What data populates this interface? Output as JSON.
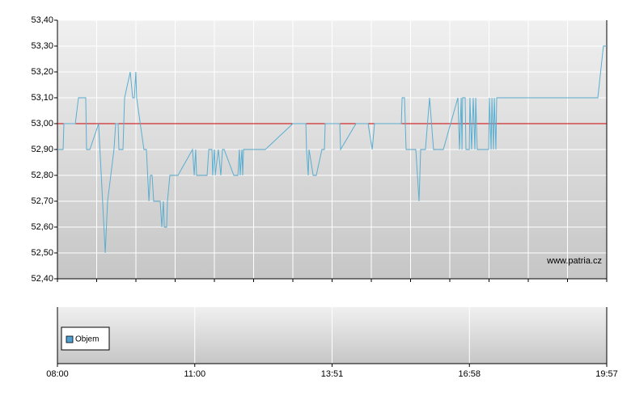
{
  "chart_data": [
    {
      "type": "line",
      "x": [
        0,
        0.041,
        0.047,
        0.13,
        0.153,
        0.206,
        0.212,
        0.236,
        0.3,
        0.348,
        0.365,
        0.412,
        0.424,
        0.442,
        0.448,
        0.477,
        0.489,
        0.53,
        0.548,
        0.56,
        0.571,
        0.577,
        0.63,
        0.648,
        0.666,
        0.677,
        0.689,
        0.701,
        0.748,
        0.76,
        0.772,
        0.778,
        0.795,
        0.801,
        0.819,
        0.878,
        0.984,
        0.996,
        1.007,
        1.013,
        1.09,
        1.102,
        1.125,
        1.131,
        1.143,
        1.149,
        1.172,
        1.19,
        1.202,
        1.214,
        1.284,
        1.314,
        1.325,
        1.331,
        1.343,
        1.349,
        1.355,
        1.514,
        1.714,
        1.809,
        1.814,
        1.826,
        1.832,
        1.862,
        1.885,
        1.926,
        1.944,
        1.95,
        2.056,
        2.062,
        2.174,
        2.262,
        2.292,
        2.309,
        2.504,
        2.51,
        2.527,
        2.539,
        2.61,
        2.633,
        2.645,
        2.68,
        2.71,
        2.739,
        2.81,
        2.916,
        2.928,
        2.94,
        2.946,
        2.951,
        2.969,
        2.975,
        2.999,
        3.004,
        3.016,
        3.028,
        3.04,
        3.046,
        3.057,
        3.14,
        3.146,
        3.158,
        3.164,
        3.175,
        3.181,
        3.193,
        3.199,
        3.935,
        3.976,
        4
      ],
      "series": [
        {
          "color": "#5aaed0",
          "values": [
            52.9,
            52.9,
            53.0,
            53.0,
            53.1,
            53.1,
            52.9,
            52.9,
            53.0,
            52.5,
            52.7,
            52.9,
            53.0,
            53.0,
            52.9,
            52.9,
            53.1,
            53.2,
            53.1,
            53.1,
            53.2,
            53.1,
            52.9,
            52.9,
            52.7,
            52.8,
            52.8,
            52.7,
            52.7,
            52.6,
            52.7,
            52.6,
            52.6,
            52.7,
            52.8,
            52.8,
            52.9,
            52.8,
            52.9,
            52.8,
            52.8,
            52.9,
            52.9,
            52.8,
            52.9,
            52.8,
            52.9,
            52.8,
            52.9,
            52.9,
            52.8,
            52.8,
            52.9,
            52.8,
            52.9,
            52.8,
            52.9,
            52.9,
            53.0,
            53.0,
            52.9,
            52.8,
            52.9,
            52.8,
            52.8,
            52.9,
            52.9,
            53.0,
            53.0,
            52.9,
            53.0,
            53.0,
            52.9,
            53.0,
            53.0,
            53.1,
            53.1,
            52.9,
            52.9,
            52.7,
            52.9,
            52.9,
            53.1,
            52.9,
            52.9,
            53.1,
            52.9,
            53.1,
            52.9,
            53.1,
            53.1,
            52.9,
            52.9,
            53.1,
            52.9,
            53.1,
            52.9,
            53.1,
            52.9,
            52.9,
            53.1,
            52.9,
            53.1,
            52.9,
            53.1,
            52.9,
            53.1,
            53.1,
            53.3,
            53.3
          ]
        }
      ],
      "reference_line": {
        "value": 53.0,
        "color": "#cc0000"
      },
      "xlim": [
        0,
        4
      ],
      "ylim": [
        52.4,
        53.4
      ],
      "yticks": [
        {
          "value": 52.4,
          "label": "52,40"
        },
        {
          "value": 52.5,
          "label": "52,50"
        },
        {
          "value": 52.6,
          "label": "52,60"
        },
        {
          "value": 52.7,
          "label": "52,70"
        },
        {
          "value": 52.8,
          "label": "52,80"
        },
        {
          "value": 52.9,
          "label": "52,90"
        },
        {
          "value": 53.0,
          "label": "53,00"
        },
        {
          "value": 53.1,
          "label": "53,10"
        },
        {
          "value": 53.2,
          "label": "53,20"
        },
        {
          "value": 53.3,
          "label": "53,30"
        },
        {
          "value": 53.4,
          "label": "53,40"
        }
      ],
      "grid": true,
      "annotation": "www.patria.cz"
    },
    {
      "type": "bar",
      "series": [
        {
          "name": "Objem",
          "color": "#4f9fd0",
          "values": []
        }
      ],
      "xlim": [
        0,
        4
      ],
      "xticks": [
        {
          "value": 0,
          "label": "08:00"
        },
        {
          "value": 1,
          "label": "11:00"
        },
        {
          "value": 2,
          "label": "13:51"
        },
        {
          "value": 3,
          "label": "16:58"
        },
        {
          "value": 4,
          "label": "19:57"
        }
      ],
      "grid": true,
      "legend": "bottom-left"
    }
  ]
}
